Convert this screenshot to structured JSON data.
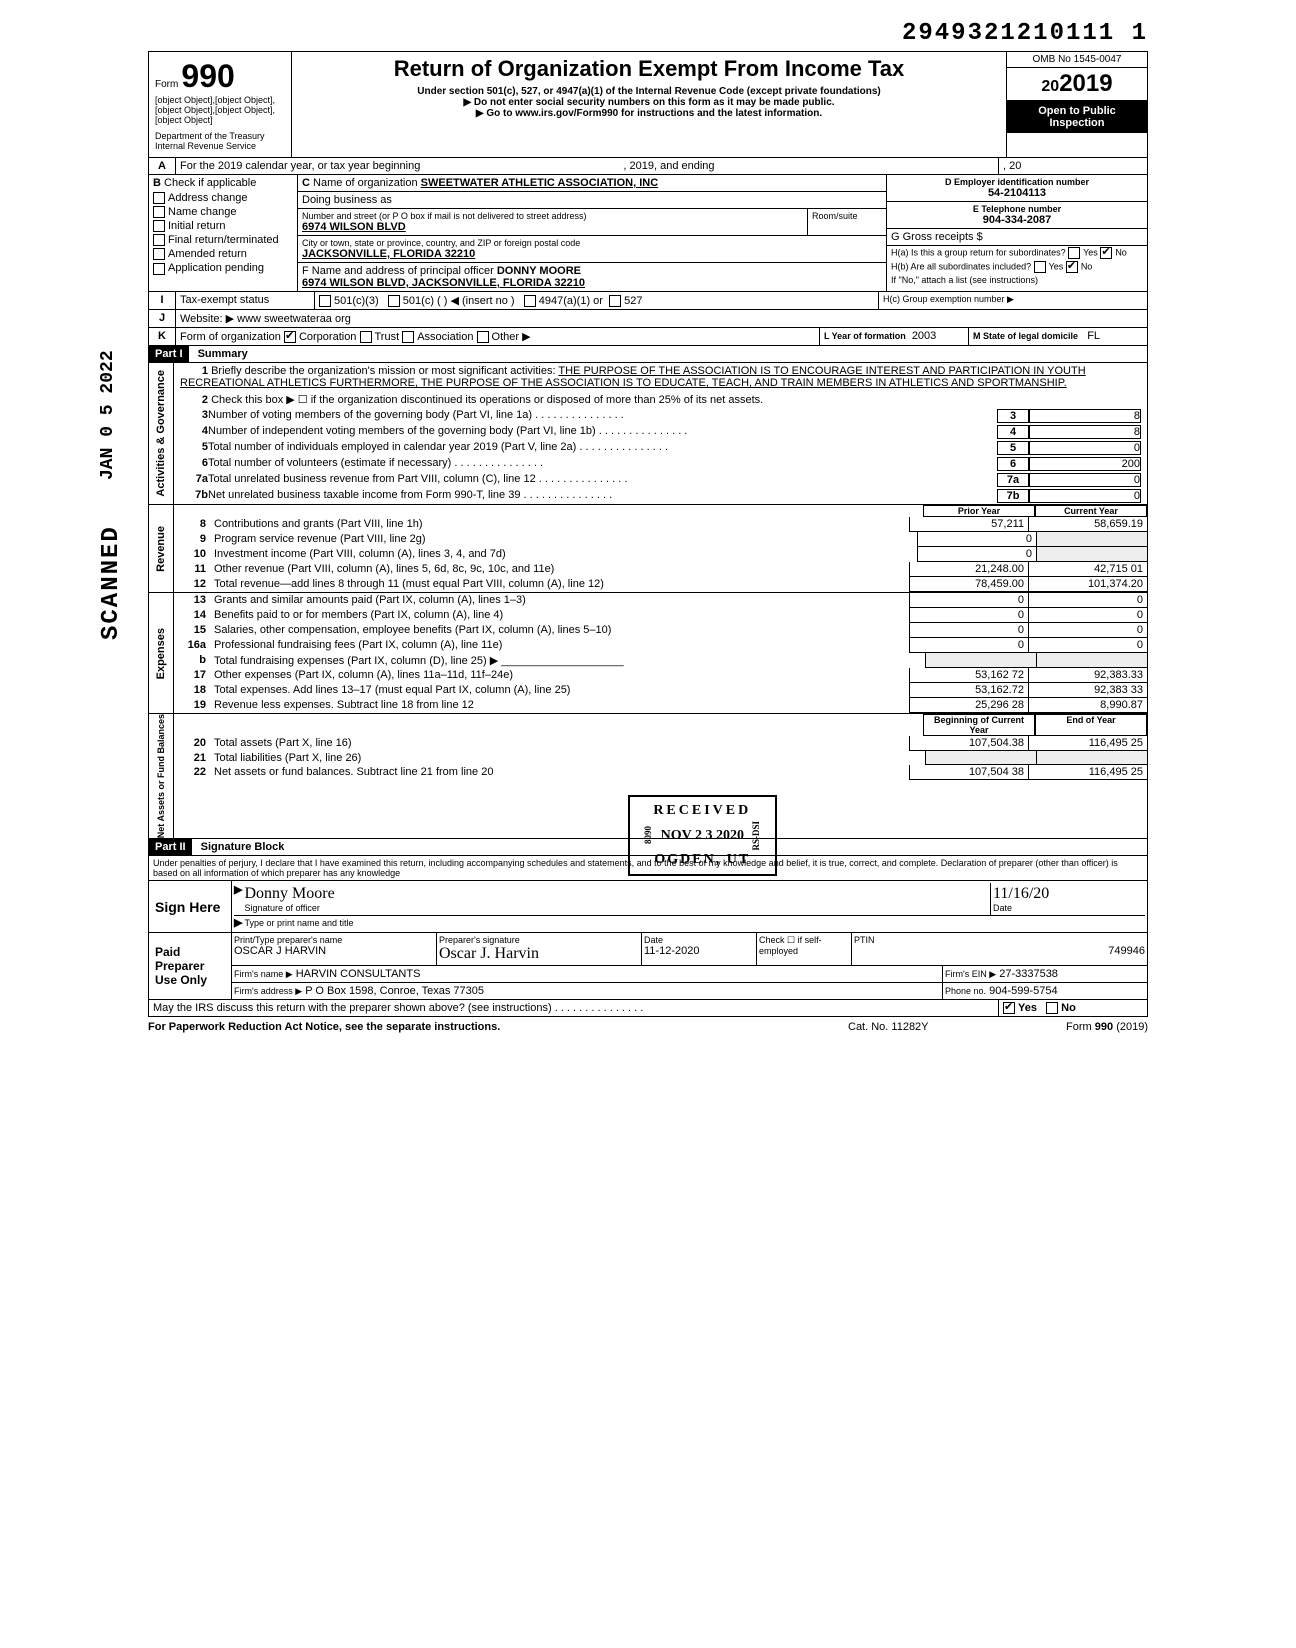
{
  "header_id": "2949321210111 1",
  "form_number": "990",
  "form_label": "Form",
  "rev": [
    {
      "n": "8",
      "t": "Contributions and grants (Part VIII, line 1h)",
      "p": "57,211",
      "c": "58,659.19"
    },
    {
      "n": "9",
      "t": "Program service revenue (Part VIII, line 2g)",
      "p": "0",
      "c": ""
    },
    {
      "n": "10",
      "t": "Investment income (Part VIII, column (A), lines 3, 4, and 7d)",
      "p": "0",
      "c": ""
    },
    {
      "n": "11",
      "t": "Other revenue (Part VIII, column (A), lines 5, 6d, 8c, 9c, 10c, and 11e)",
      "p": "21,248.00",
      "c": "42,715 01"
    },
    {
      "n": "12",
      "t": "Total revenue—add lines 8 through 11 (must equal Part VIII, column (A), line 12)",
      "p": "78,459.00",
      "c": "101,374.20"
    }
  ],
  "dept": "Department of the Treasury",
  "irs": "Internal Revenue Service",
  "title": "Return of Organization Exempt From Income Tax",
  "subtitle": "Under section 501(c), 527, or 4947(a)(1) of the Internal Revenue Code (except private foundations)",
  "note1": "▶ Do not enter social security numbers on this form as it may be made public.",
  "note2": "▶ Go to www.irs.gov/Form990 for instructions and the latest information.",
  "omb": "OMB No 1545-0047",
  "year": "2019",
  "open_public1": "Open to Public",
  "open_public2": "Inspection",
  "lineA": {
    "label": "A",
    "text1": "For the 2019 calendar year, or tax year beginning",
    "text2": ", 2019, and ending",
    "text3": ", 20"
  },
  "lineB": {
    "label": "B",
    "heading": "Check if applicable",
    "items": [
      "Address change",
      "Name change",
      "Initial return",
      "Final return/terminated",
      "Amended return",
      "Application pending"
    ]
  },
  "lineC": {
    "label": "C",
    "heading": "Name of organization",
    "org_name": "SWEETWATER ATHLETIC ASSOCIATION, INC",
    "dba_label": "Doing business as",
    "addr_label": "Number and street (or P O box if mail is not delivered to street address)",
    "addr": "6974 WILSON BLVD",
    "room_label": "Room/suite",
    "city_label": "City or town, state or province, country, and ZIP or foreign postal code",
    "city": "JACKSONVILLE, FLORIDA 32210",
    "officer_label": "F Name and address of principal officer",
    "officer": "DONNY MOORE",
    "officer_addr": "6974 WILSON BLVD, JACKSONVILLE, FLORIDA 32210"
  },
  "lineD": {
    "label": "D Employer identification number",
    "value": "54-2104113"
  },
  "lineE": {
    "label": "E Telephone number",
    "value": "904-334-2087"
  },
  "lineG": {
    "label": "G Gross receipts $"
  },
  "lineH": {
    "a": "H(a) Is this a group return for subordinates?",
    "a_yes": "Yes",
    "a_no": "No",
    "b": "H(b) Are all subordinates included?",
    "b_yes": "Yes",
    "b_no": "No",
    "b_note": "If \"No,\" attach a list (see instructions)",
    "c": "H(c) Group exemption number ▶"
  },
  "lineI": {
    "label": "I",
    "text": "Tax-exempt status",
    "opts": [
      "501(c)(3)",
      "501(c) (",
      "  ) ◀ (insert no )",
      "4947(a)(1) or",
      "527"
    ]
  },
  "lineJ": {
    "label": "J",
    "text": "Website: ▶",
    "value": "www sweetwateraa org"
  },
  "lineK": {
    "label": "K",
    "text": "Form of organization",
    "opts": [
      "Corporation",
      "Trust",
      "Association",
      "Other ▶"
    ],
    "year_label": "L Year of formation",
    "year": "2003",
    "state_label": "M State of legal domicile",
    "state": "FL"
  },
  "part1": {
    "header": "Part I",
    "title": "Summary"
  },
  "sideA": "Activities & Governance",
  "sideB": "Revenue",
  "sideC": "Expenses",
  "sideD": "Net Assets or Fund Balances",
  "mission_label": "Briefly describe the organization's mission or most significant activities:",
  "mission": "THE PURPOSE OF THE ASSOCIATION IS TO ENCOURAGE INTEREST AND PARTICIPATION IN YOUTH RECREATIONAL ATHLETICS   FURTHERMORE, THE PURPOSE OF THE ASSOCIATION IS TO EDUCATE, TEACH, AND TRAIN MEMBERS IN ATHLETICS AND SPORTMANSHIP.",
  "lines": {
    "2": "Check this box ▶ ☐ if the organization discontinued its operations or disposed of more than 25% of its net assets.",
    "3": {
      "t": "Number of voting members of the governing body (Part VI, line 1a)",
      "n": "3",
      "v": "8"
    },
    "4": {
      "t": "Number of independent voting members of the governing body (Part VI, line 1b)",
      "n": "4",
      "v": "8"
    },
    "5": {
      "t": "Total number of individuals employed in calendar year 2019 (Part V, line 2a)",
      "n": "5",
      "v": "0"
    },
    "6": {
      "t": "Total number of volunteers (estimate if necessary)",
      "n": "6",
      "v": "200"
    },
    "7a": {
      "t": "Total unrelated business revenue from Part VIII, column (C), line 12",
      "n": "7a",
      "v": "0"
    },
    "7b": {
      "t": "Net unrelated business taxable income from Form 990-T, line 39",
      "n": "7b",
      "v": "0"
    }
  },
  "col_prior": "Prior Year",
  "col_current": "Current Year",
  "exp": [
    {
      "n": "13",
      "t": "Grants and similar amounts paid (Part IX, column (A), lines 1–3)",
      "p": "0",
      "c": "0"
    },
    {
      "n": "14",
      "t": "Benefits paid to or for members (Part IX, column (A), line 4)",
      "p": "0",
      "c": "0"
    },
    {
      "n": "15",
      "t": "Salaries, other compensation, employee benefits (Part IX, column (A), lines 5–10)",
      "p": "0",
      "c": "0"
    },
    {
      "n": "16a",
      "t": "Professional fundraising fees (Part IX, column (A), line 11e)",
      "p": "0",
      "c": "0"
    },
    {
      "n": "b",
      "t": "Total fundraising expenses (Part IX, column (D), line 25) ▶ ____________________",
      "p": "",
      "c": ""
    },
    {
      "n": "17",
      "t": "Other expenses (Part IX, column (A), lines 11a–11d, 11f–24e)",
      "p": "53,162 72",
      "c": "92,383.33"
    },
    {
      "n": "18",
      "t": "Total expenses. Add lines 13–17 (must equal Part IX, column (A), line 25)",
      "p": "53,162.72",
      "c": "92,383 33"
    },
    {
      "n": "19",
      "t": "Revenue less expenses. Subtract line 18 from line 12",
      "p": "25,296 28",
      "c": "8,990.87"
    }
  ],
  "col_begin": "Beginning of Current Year",
  "col_end": "End of Year",
  "net": [
    {
      "n": "20",
      "t": "Total assets (Part X, line 16)",
      "p": "107,504.38",
      "c": "116,495 25"
    },
    {
      "n": "21",
      "t": "Total liabilities (Part X, line 26)",
      "p": "",
      "c": ""
    },
    {
      "n": "22",
      "t": "Net assets or fund balances. Subtract line 21 from line 20",
      "p": "107,504 38",
      "c": "116,495 25"
    }
  ],
  "part2": {
    "header": "Part II",
    "title": "Signature Block"
  },
  "perjury": "Under penalties of perjury, I declare that I have examined this return, including accompanying schedules and statements, and to the best of my knowledge and belief, it is true, correct, and complete. Declaration of preparer (other than officer) is based on all information of which preparer has any knowledge",
  "sign_here": "Sign Here",
  "sig_officer_label": "Signature of officer",
  "sig_date_label": "Date",
  "sig_type_label": "Type or print name and title",
  "sig_officer_sig": "Donny Moore",
  "sig_date": "11/16/20",
  "paid": {
    "label": "Paid Preparer Use Only",
    "name_label": "Print/Type preparer's name",
    "name": "OSCAR J HARVIN",
    "sig_label": "Preparer's signature",
    "sig": "Oscar J. Harvin",
    "date_label": "Date",
    "date": "11-12-2020",
    "check_label": "Check ☐ if self-employed",
    "ptin_label": "PTIN",
    "ptin": "749946",
    "firm_label": "Firm's name ▶",
    "firm": "HARVIN CONSULTANTS",
    "ein_label": "Firm's EIN ▶",
    "ein": "27-3337538",
    "addr_label": "Firm's address ▶",
    "addr": "P O Box 1598, Conroe, Texas 77305",
    "phone_label": "Phone no.",
    "phone": "904-599-5754"
  },
  "discuss": "May the IRS discuss this return with the preparer shown above? (see instructions)",
  "discuss_yes": "Yes",
  "discuss_no": "No",
  "footer_left": "For Paperwork Reduction Act Notice, see the separate instructions.",
  "footer_mid": "Cat. No. 11282Y",
  "footer_right": "Form 990 (2019)",
  "stamp_scanned": "SCANNED",
  "stamp_jan": "JAN 0 5 2022",
  "stamp_received": "RECEIVED",
  "stamp_nov": "NOV 2 3 2020",
  "stamp_ogden": "OGDEN, UT",
  "stamp_8090": "8090",
  "stamp_rsdsi": "RS-DSI"
}
